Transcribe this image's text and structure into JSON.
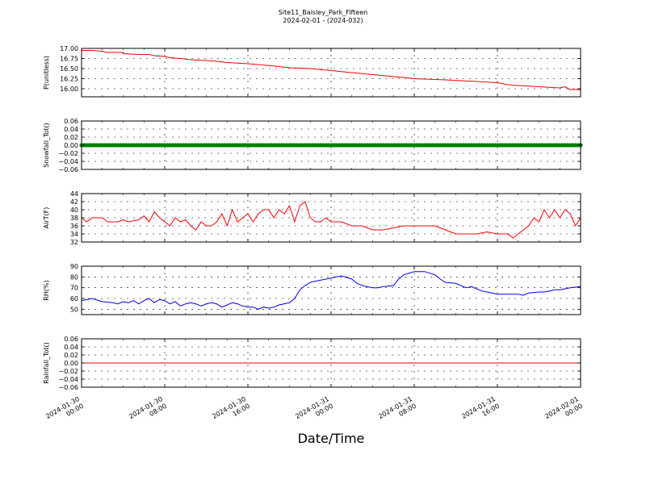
{
  "figure": {
    "title": "Site11_Baisley_Park_Fifteen",
    "subtitle": "2024-02-01 - (2024-032)",
    "xlabel": "Date/Time",
    "x_ticks": [
      "2024-01-30\n00:00",
      "2024-01-30\n08:00",
      "2024-01-30\n16:00",
      "2024-01-31\n00:00",
      "2024-01-31\n08:00",
      "2024-01-31\n16:00",
      "2024-02-01\n00:00"
    ],
    "x_range_hours": [
      0,
      48
    ],
    "tick_every_hours": 8
  },
  "chart_data": [
    {
      "type": "line",
      "ylabel": "P(unitless)",
      "ylim": [
        15.8,
        17.0
      ],
      "yticks": [
        16.0,
        16.25,
        16.5,
        16.75,
        17.0
      ],
      "ytick_labels": [
        "16.00",
        "16.25",
        "16.50",
        "16.75",
        "17.00"
      ],
      "grid": true,
      "color": "#ff0000",
      "points": [
        [
          0,
          16.95
        ],
        [
          1,
          16.95
        ],
        [
          2,
          16.93
        ],
        [
          2.5,
          16.9
        ],
        [
          4,
          16.9
        ],
        [
          4,
          16.87
        ],
        [
          5.5,
          16.85
        ],
        [
          6.5,
          16.85
        ],
        [
          7,
          16.82
        ],
        [
          8,
          16.8
        ],
        [
          8.5,
          16.77
        ],
        [
          9.5,
          16.75
        ],
        [
          10.5,
          16.72
        ],
        [
          12,
          16.7
        ],
        [
          13,
          16.68
        ],
        [
          14,
          16.65
        ],
        [
          16,
          16.62
        ],
        [
          17,
          16.6
        ],
        [
          19,
          16.55
        ],
        [
          20,
          16.52
        ],
        [
          22,
          16.5
        ],
        [
          24,
          16.45
        ],
        [
          26,
          16.4
        ],
        [
          28,
          16.35
        ],
        [
          30,
          16.3
        ],
        [
          31,
          16.28
        ],
        [
          32,
          16.25
        ],
        [
          35,
          16.22
        ],
        [
          38,
          16.18
        ],
        [
          40,
          16.15
        ],
        [
          41,
          16.1
        ],
        [
          42,
          16.08
        ],
        [
          44,
          16.05
        ],
        [
          46,
          16.02
        ],
        [
          46.5,
          16.05
        ],
        [
          47,
          15.98
        ],
        [
          48,
          15.98
        ]
      ]
    },
    {
      "type": "line",
      "ylabel": "Snowfall_Tot()",
      "ylim": [
        -0.06,
        0.06
      ],
      "yticks": [
        -0.06,
        -0.04,
        -0.02,
        0.0,
        0.02,
        0.04,
        0.06
      ],
      "ytick_labels": [
        "−0.06",
        "−0.04",
        "−0.02",
        "0.00",
        "0.02",
        "0.04",
        "0.06"
      ],
      "grid": true,
      "color": "#008000",
      "marker": "circle",
      "points": [
        [
          0,
          0
        ],
        [
          48,
          0
        ]
      ]
    },
    {
      "type": "line",
      "ylabel": "AirT(F)",
      "ylim": [
        32,
        44
      ],
      "yticks": [
        32,
        34,
        36,
        38,
        40,
        42,
        44
      ],
      "ytick_labels": [
        "32",
        "34",
        "36",
        "38",
        "40",
        "42",
        "44"
      ],
      "grid": true,
      "color": "#ff0000",
      "points": [
        [
          0,
          38
        ],
        [
          0.5,
          37
        ],
        [
          1,
          38
        ],
        [
          2,
          38
        ],
        [
          2.5,
          37
        ],
        [
          3.5,
          37
        ],
        [
          4,
          37.5
        ],
        [
          4.5,
          37
        ],
        [
          5.5,
          37.5
        ],
        [
          6,
          38.5
        ],
        [
          6.5,
          37
        ],
        [
          7,
          39.5
        ],
        [
          7.5,
          38
        ],
        [
          8,
          37
        ],
        [
          8.5,
          36
        ],
        [
          9,
          38
        ],
        [
          9.5,
          37
        ],
        [
          10,
          37.5
        ],
        [
          10.5,
          36
        ],
        [
          11,
          35
        ],
        [
          11.5,
          37
        ],
        [
          12,
          36
        ],
        [
          12.5,
          36
        ],
        [
          13,
          37
        ],
        [
          13.5,
          39
        ],
        [
          14,
          36
        ],
        [
          14.5,
          40
        ],
        [
          15,
          37
        ],
        [
          15.5,
          38
        ],
        [
          16,
          39
        ],
        [
          16.5,
          37
        ],
        [
          17,
          39
        ],
        [
          17.5,
          40
        ],
        [
          18,
          40
        ],
        [
          18.5,
          38
        ],
        [
          19,
          40
        ],
        [
          19.5,
          39
        ],
        [
          20,
          41
        ],
        [
          20.5,
          37
        ],
        [
          21,
          41
        ],
        [
          21.5,
          42
        ],
        [
          22,
          38
        ],
        [
          22.5,
          37
        ],
        [
          23,
          37
        ],
        [
          23.5,
          38
        ],
        [
          24,
          37
        ],
        [
          25,
          37
        ],
        [
          26,
          36
        ],
        [
          27,
          36
        ],
        [
          28,
          35
        ],
        [
          29,
          35
        ],
        [
          30,
          35.5
        ],
        [
          31,
          36
        ],
        [
          32,
          36
        ],
        [
          33,
          36
        ],
        [
          34,
          36
        ],
        [
          35,
          35
        ],
        [
          36,
          34
        ],
        [
          37,
          34
        ],
        [
          38,
          34
        ],
        [
          39,
          34.5
        ],
        [
          40,
          34
        ],
        [
          41,
          34
        ],
        [
          41.5,
          33
        ],
        [
          42,
          34
        ],
        [
          42.5,
          35
        ],
        [
          43,
          36
        ],
        [
          43.5,
          38
        ],
        [
          44,
          37
        ],
        [
          44.5,
          40
        ],
        [
          45,
          38
        ],
        [
          45.5,
          40
        ],
        [
          46,
          38
        ],
        [
          46.5,
          40
        ],
        [
          47,
          39
        ],
        [
          47.5,
          36
        ],
        [
          48,
          38
        ]
      ]
    },
    {
      "type": "line",
      "ylabel": "RH(%)",
      "ylim": [
        45,
        90
      ],
      "yticks": [
        50,
        60,
        70,
        80,
        90
      ],
      "ytick_labels": [
        "50",
        "60",
        "70",
        "80",
        "90"
      ],
      "grid": true,
      "color": "#0000ff",
      "points": [
        [
          0,
          58
        ],
        [
          1,
          60
        ],
        [
          2,
          57
        ],
        [
          3,
          56
        ],
        [
          3.5,
          55
        ],
        [
          4,
          57
        ],
        [
          4.5,
          56
        ],
        [
          5,
          58
        ],
        [
          5.5,
          55
        ],
        [
          6,
          58
        ],
        [
          6.5,
          60
        ],
        [
          7,
          56
        ],
        [
          7.5,
          59
        ],
        [
          8,
          58
        ],
        [
          8.5,
          55
        ],
        [
          9,
          57
        ],
        [
          9.5,
          53
        ],
        [
          10,
          55
        ],
        [
          10.5,
          56
        ],
        [
          11,
          55
        ],
        [
          11.5,
          53
        ],
        [
          12,
          55
        ],
        [
          12.5,
          56
        ],
        [
          13,
          55
        ],
        [
          13.5,
          52
        ],
        [
          14,
          54
        ],
        [
          14.5,
          56
        ],
        [
          15,
          55
        ],
        [
          15.5,
          53
        ],
        [
          16,
          52
        ],
        [
          16.5,
          52
        ],
        [
          17,
          50
        ],
        [
          17.5,
          52
        ],
        [
          18,
          51
        ],
        [
          18.5,
          52
        ],
        [
          19,
          54
        ],
        [
          20,
          56
        ],
        [
          20.5,
          60
        ],
        [
          21,
          68
        ],
        [
          21.5,
          72
        ],
        [
          22,
          75
        ],
        [
          23,
          77
        ],
        [
          23.5,
          78
        ],
        [
          24,
          79
        ],
        [
          24.5,
          80
        ],
        [
          25,
          81
        ],
        [
          26,
          78
        ],
        [
          26.5,
          74
        ],
        [
          27,
          72
        ],
        [
          28,
          70
        ],
        [
          28.5,
          70
        ],
        [
          29,
          71
        ],
        [
          30,
          72
        ],
        [
          30.5,
          78
        ],
        [
          31,
          82
        ],
        [
          32,
          85
        ],
        [
          33,
          85
        ],
        [
          34,
          82
        ],
        [
          34.5,
          78
        ],
        [
          35,
          75
        ],
        [
          36,
          74
        ],
        [
          36.5,
          72
        ],
        [
          37,
          70
        ],
        [
          37.5,
          71
        ],
        [
          38,
          69
        ],
        [
          38.5,
          67
        ],
        [
          39,
          66
        ],
        [
          39.5,
          65
        ],
        [
          40,
          64
        ],
        [
          41,
          64
        ],
        [
          41.5,
          64
        ],
        [
          42,
          64
        ],
        [
          42.5,
          63
        ],
        [
          43,
          65
        ],
        [
          44,
          66
        ],
        [
          44.5,
          66
        ],
        [
          45,
          67
        ],
        [
          45.5,
          68
        ],
        [
          46,
          68
        ],
        [
          47,
          70
        ],
        [
          48,
          71
        ]
      ]
    },
    {
      "type": "line",
      "ylabel": "Rainfall_Tot()",
      "ylim": [
        -0.06,
        0.06
      ],
      "yticks": [
        -0.06,
        -0.04,
        -0.02,
        0.0,
        0.02,
        0.04,
        0.06
      ],
      "ytick_labels": [
        "−0.06",
        "−0.04",
        "−0.02",
        "0.00",
        "0.02",
        "0.04",
        "0.06"
      ],
      "grid": true,
      "color": "#ff0000",
      "points": [
        [
          0,
          0
        ],
        [
          48,
          0
        ]
      ]
    }
  ]
}
